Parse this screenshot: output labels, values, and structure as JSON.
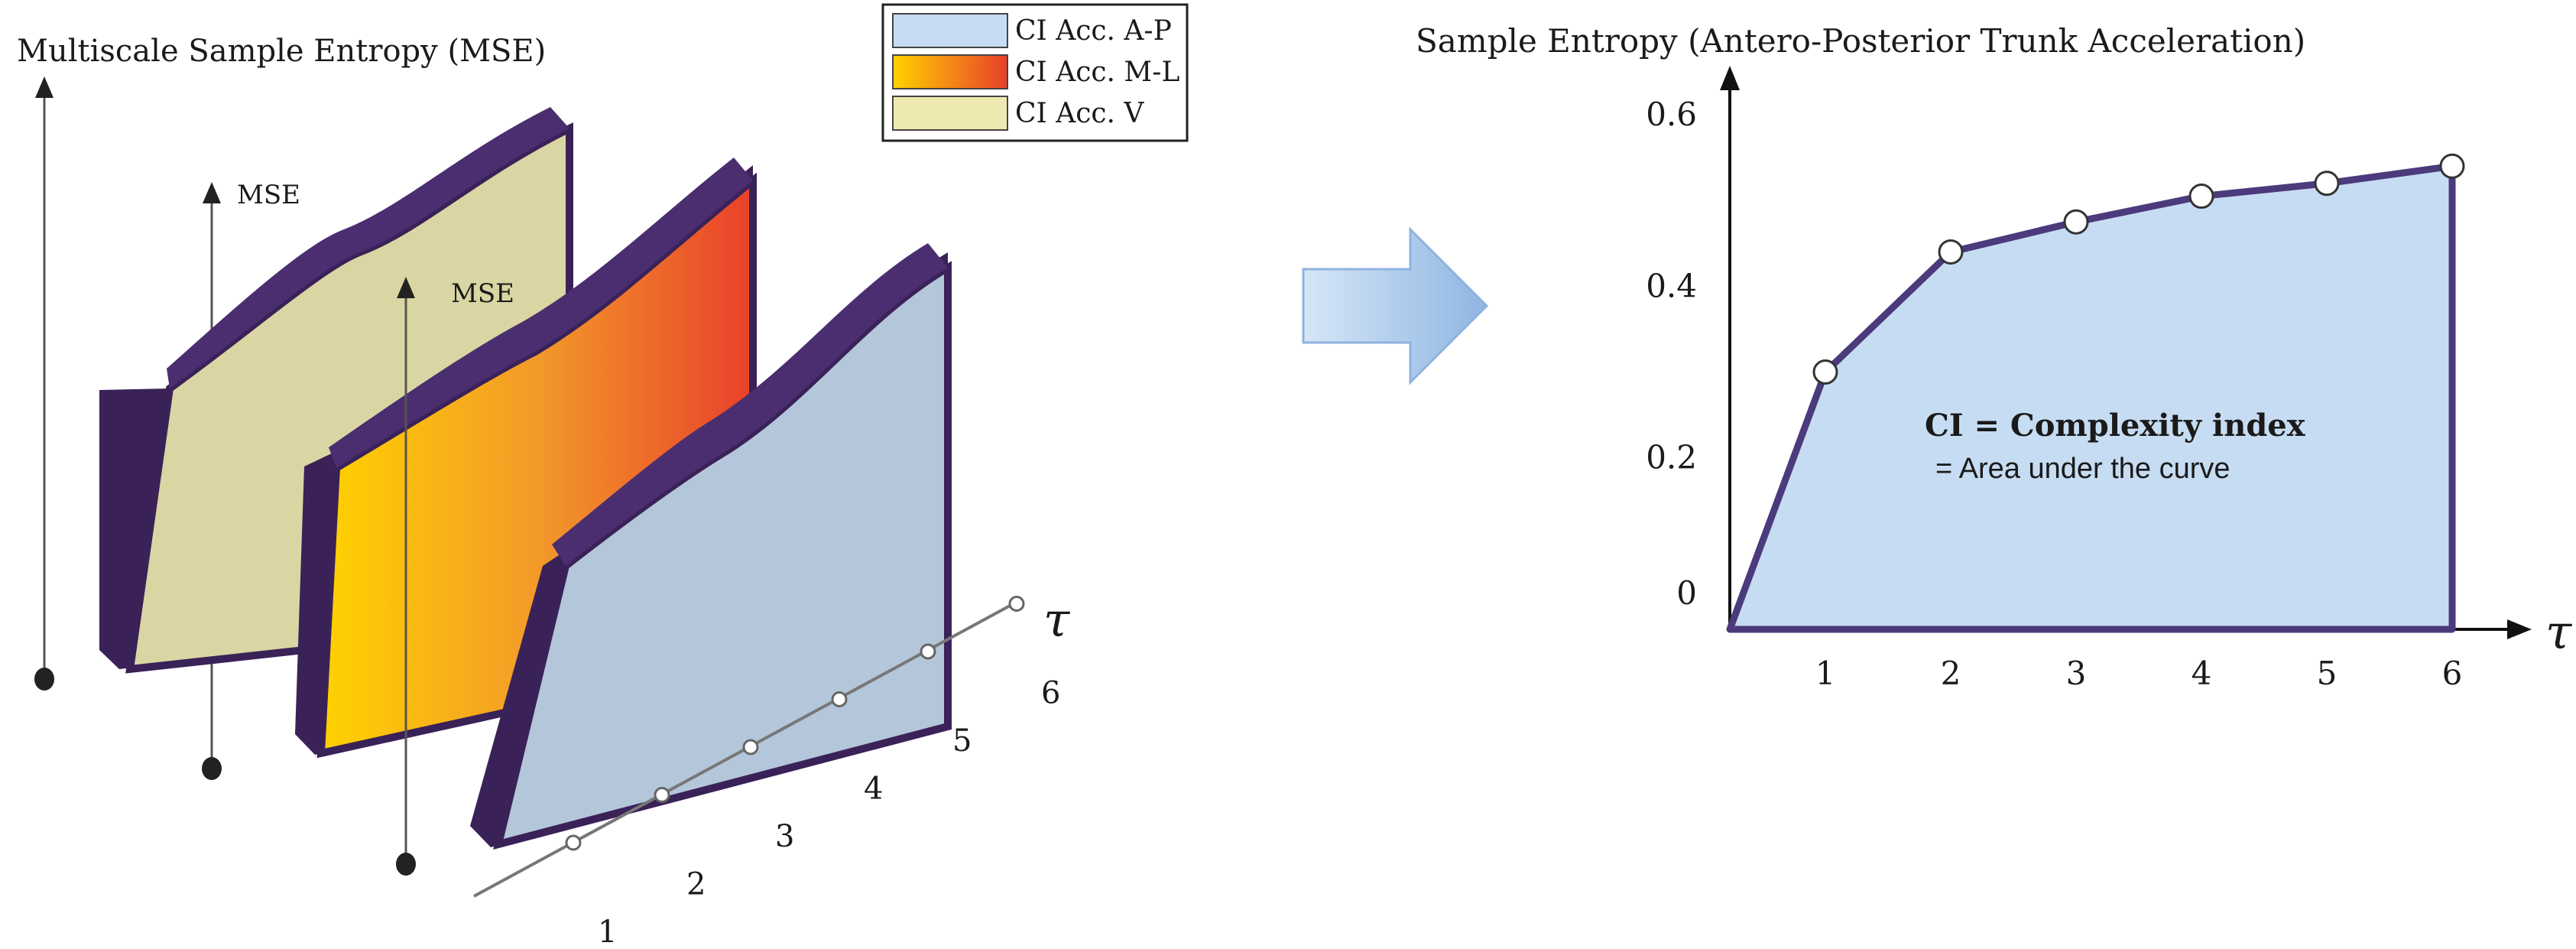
{
  "left_panel": {
    "title": "Multiscale Sample Entropy (MSE)",
    "axis_labels": [
      "MSE",
      "MSE"
    ],
    "tau_symbol": "τ",
    "tau_ticks": [
      "1",
      "2",
      "3",
      "4",
      "5",
      "6"
    ],
    "legend": [
      {
        "label": "CI Acc. A-P",
        "color": "#c6dcf2"
      },
      {
        "label": "CI Acc. M-L",
        "color": "#e8402a"
      },
      {
        "label": "CI Acc. V",
        "color": "#eee9b0"
      }
    ]
  },
  "arrow": {
    "icon": "right-arrow-icon",
    "color": "#a9c8ea"
  },
  "right_panel": {
    "title": "Sample Entropy (Antero-Posterior Trunk Acceleration)",
    "annotation_bold": "CI = Complexity index",
    "annotation_text": "= Area under the curve",
    "chart_data": {
      "type": "area",
      "title": "Sample Entropy (Antero-Posterior Trunk Acceleration)",
      "xlabel": "τ",
      "x": [
        1,
        2,
        3,
        4,
        5,
        6
      ],
      "series": [
        {
          "values": [
            0.3,
            0.44,
            0.475,
            0.505,
            0.52,
            0.54
          ]
        }
      ],
      "y_ticks": [
        "0",
        "0.2",
        "0.4",
        "0.6"
      ],
      "x_ticks": [
        "1",
        "2",
        "3",
        "4",
        "5",
        "6"
      ],
      "ylim": [
        0,
        0.6
      ],
      "fill_color": "#c6dcf2",
      "line_color": "#4b3a7c",
      "grid": false
    }
  }
}
